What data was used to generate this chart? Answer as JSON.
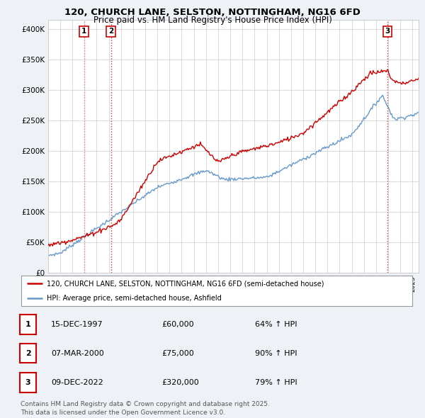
{
  "title1": "120, CHURCH LANE, SELSTON, NOTTINGHAM, NG16 6FD",
  "title2": "Price paid vs. HM Land Registry's House Price Index (HPI)",
  "ylabel_ticks": [
    "£0",
    "£50K",
    "£100K",
    "£150K",
    "£200K",
    "£250K",
    "£300K",
    "£350K",
    "£400K"
  ],
  "ytick_vals": [
    0,
    50000,
    100000,
    150000,
    200000,
    250000,
    300000,
    350000,
    400000
  ],
  "ylim": [
    0,
    415000
  ],
  "xlim_start": 1995.0,
  "xlim_end": 2025.5,
  "red_color": "#cc0000",
  "blue_color": "#6699cc",
  "sale_dates": [
    1997.96,
    2000.18,
    2022.94
  ],
  "sale_labels": [
    "1",
    "2",
    "3"
  ],
  "legend_line1": "120, CHURCH LANE, SELSTON, NOTTINGHAM, NG16 6FD (semi-detached house)",
  "legend_line2": "HPI: Average price, semi-detached house, Ashfield",
  "table_entries": [
    {
      "num": "1",
      "date": "15-DEC-1997",
      "price": "£60,000",
      "hpi": "64% ↑ HPI"
    },
    {
      "num": "2",
      "date": "07-MAR-2000",
      "price": "£75,000",
      "hpi": "90% ↑ HPI"
    },
    {
      "num": "3",
      "date": "09-DEC-2022",
      "price": "£320,000",
      "hpi": "79% ↑ HPI"
    }
  ],
  "footer": "Contains HM Land Registry data © Crown copyright and database right 2025.\nThis data is licensed under the Open Government Licence v3.0.",
  "bg_color": "#eef2f7",
  "plot_bg": "#ffffff",
  "grid_color": "#cccccc"
}
